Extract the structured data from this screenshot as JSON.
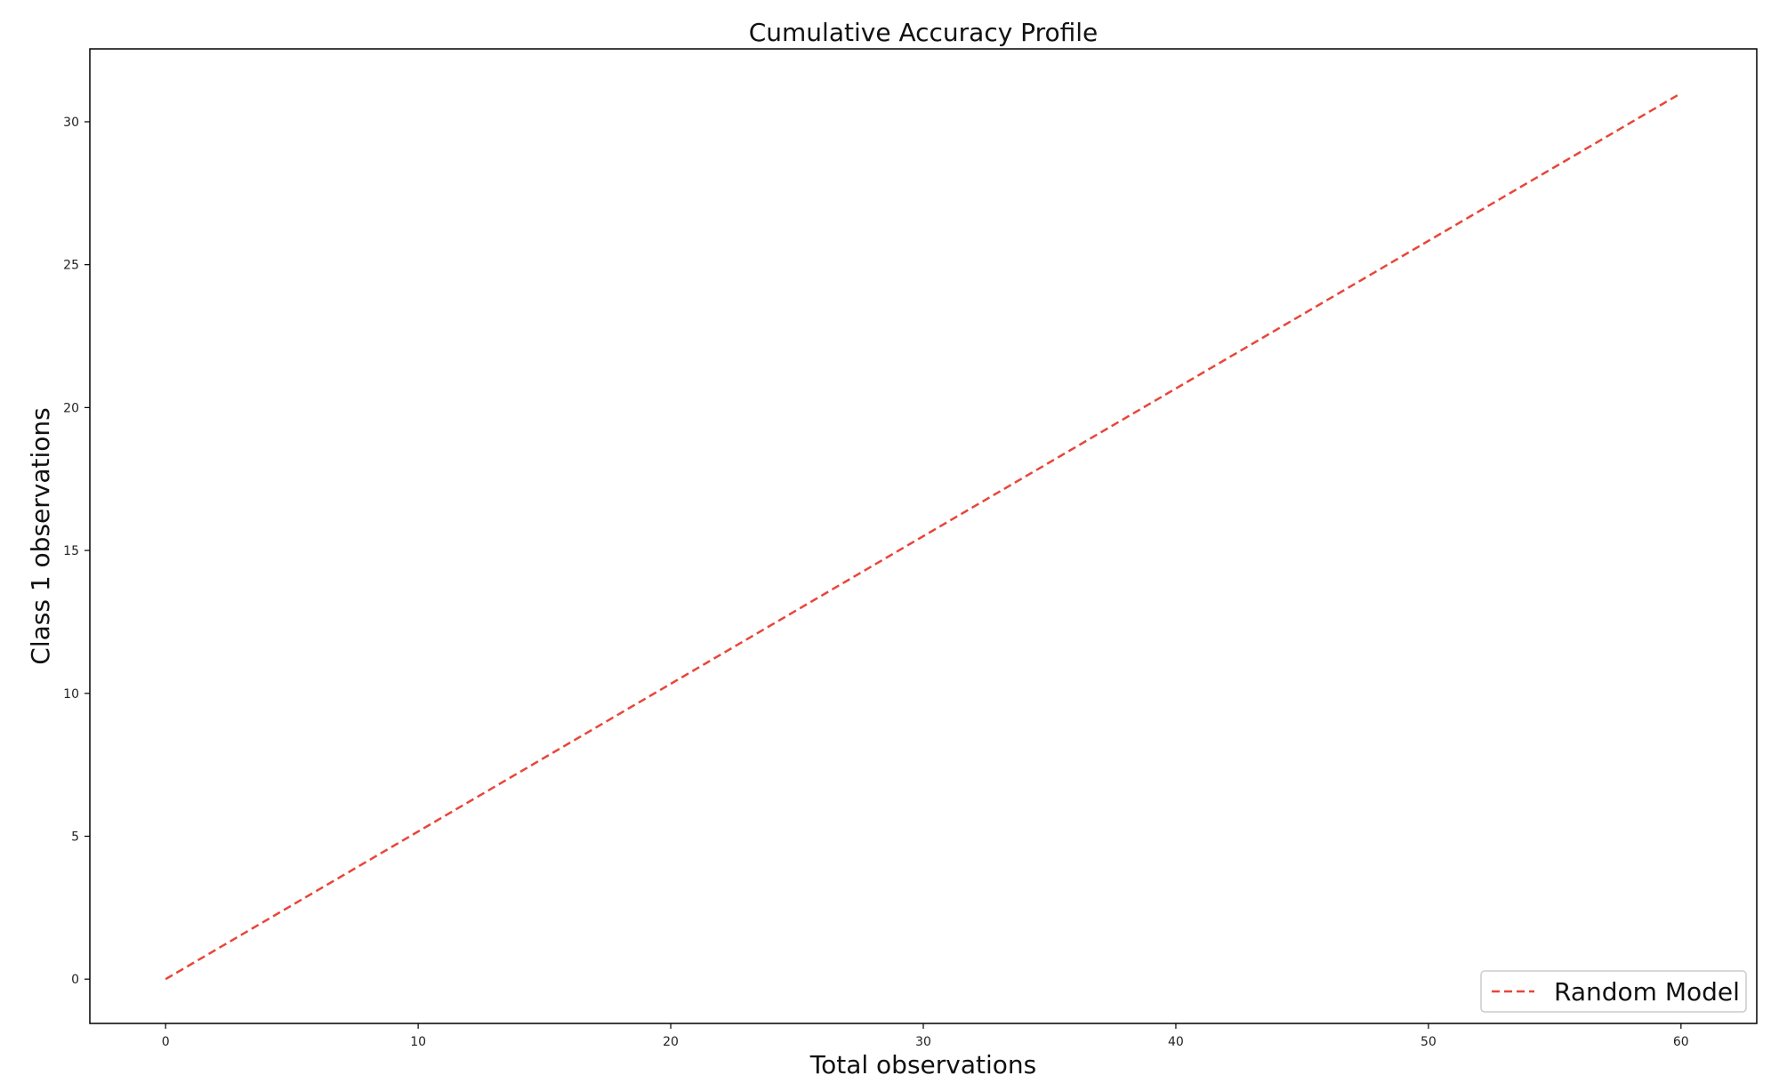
{
  "chart_data": {
    "type": "line",
    "title": "Cumulative Accuracy Profile",
    "xlabel": "Total observations",
    "ylabel": "Class 1 observations",
    "xlim": [
      -3,
      63
    ],
    "ylim": [
      -1.55,
      32.55
    ],
    "x_ticks": [
      0,
      10,
      20,
      30,
      40,
      50,
      60
    ],
    "y_ticks": [
      0,
      5,
      10,
      15,
      20,
      25,
      30
    ],
    "grid": false,
    "legend_position": "lower-right",
    "series": [
      {
        "name": "Random Model",
        "x": [
          0,
          60
        ],
        "y": [
          0,
          31
        ],
        "color": "#e8463a",
        "line_style": "dashed"
      }
    ]
  }
}
